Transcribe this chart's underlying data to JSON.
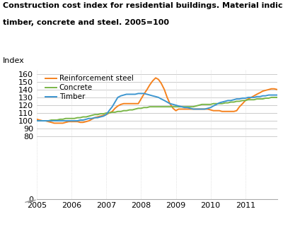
{
  "title_line1": "Construction cost index for residential buildings. Material indices for",
  "title_line2": "timber, concrete and steel. 2005=100",
  "ylabel": "Index",
  "background_color": "#ffffff",
  "grid_color": "#cccccc",
  "colors": {
    "steel": "#f5821e",
    "concrete": "#7ab648",
    "timber": "#3d96d0"
  },
  "legend": [
    "Reinforcement steel",
    "Concrete",
    "Timber"
  ],
  "ylim": [
    0,
    165
  ],
  "yticks": [
    0,
    80,
    90,
    100,
    110,
    120,
    130,
    140,
    150,
    160
  ],
  "xlim_start": 2005.0,
  "xlim_end": 2011.92,
  "steel": [
    [
      2005.0,
      102
    ],
    [
      2005.08,
      101
    ],
    [
      2005.17,
      100
    ],
    [
      2005.25,
      100
    ],
    [
      2005.33,
      99
    ],
    [
      2005.42,
      98
    ],
    [
      2005.5,
      97
    ],
    [
      2005.58,
      97
    ],
    [
      2005.67,
      97
    ],
    [
      2005.75,
      97
    ],
    [
      2005.83,
      98
    ],
    [
      2005.92,
      99
    ],
    [
      2006.0,
      99
    ],
    [
      2006.08,
      99
    ],
    [
      2006.17,
      99
    ],
    [
      2006.25,
      98
    ],
    [
      2006.33,
      98
    ],
    [
      2006.42,
      99
    ],
    [
      2006.5,
      100
    ],
    [
      2006.58,
      102
    ],
    [
      2006.67,
      104
    ],
    [
      2006.75,
      105
    ],
    [
      2006.83,
      106
    ],
    [
      2006.92,
      107
    ],
    [
      2007.0,
      108
    ],
    [
      2007.08,
      110
    ],
    [
      2007.17,
      112
    ],
    [
      2007.25,
      116
    ],
    [
      2007.33,
      119
    ],
    [
      2007.42,
      121
    ],
    [
      2007.5,
      122
    ],
    [
      2007.58,
      122
    ],
    [
      2007.67,
      122
    ],
    [
      2007.75,
      122
    ],
    [
      2007.83,
      122
    ],
    [
      2007.92,
      122
    ],
    [
      2008.0,
      128
    ],
    [
      2008.08,
      134
    ],
    [
      2008.17,
      140
    ],
    [
      2008.25,
      146
    ],
    [
      2008.33,
      151
    ],
    [
      2008.42,
      155
    ],
    [
      2008.5,
      153
    ],
    [
      2008.58,
      148
    ],
    [
      2008.67,
      140
    ],
    [
      2008.75,
      130
    ],
    [
      2008.83,
      122
    ],
    [
      2008.92,
      116
    ],
    [
      2009.0,
      113
    ],
    [
      2009.08,
      115
    ],
    [
      2009.17,
      115
    ],
    [
      2009.25,
      115
    ],
    [
      2009.33,
      115
    ],
    [
      2009.42,
      115
    ],
    [
      2009.5,
      115
    ],
    [
      2009.58,
      115
    ],
    [
      2009.67,
      115
    ],
    [
      2009.75,
      115
    ],
    [
      2009.83,
      115
    ],
    [
      2009.92,
      115
    ],
    [
      2010.0,
      114
    ],
    [
      2010.08,
      113
    ],
    [
      2010.17,
      113
    ],
    [
      2010.25,
      113
    ],
    [
      2010.33,
      112
    ],
    [
      2010.42,
      112
    ],
    [
      2010.5,
      112
    ],
    [
      2010.58,
      112
    ],
    [
      2010.67,
      112
    ],
    [
      2010.75,
      113
    ],
    [
      2010.83,
      118
    ],
    [
      2010.92,
      122
    ],
    [
      2011.0,
      126
    ],
    [
      2011.08,
      128
    ],
    [
      2011.17,
      130
    ],
    [
      2011.25,
      132
    ],
    [
      2011.33,
      134
    ],
    [
      2011.42,
      136
    ],
    [
      2011.5,
      138
    ],
    [
      2011.58,
      139
    ],
    [
      2011.67,
      140
    ],
    [
      2011.75,
      141
    ],
    [
      2011.83,
      141
    ],
    [
      2011.92,
      140
    ]
  ],
  "concrete": [
    [
      2005.0,
      100
    ],
    [
      2005.08,
      100
    ],
    [
      2005.17,
      100
    ],
    [
      2005.25,
      100
    ],
    [
      2005.33,
      100
    ],
    [
      2005.42,
      101
    ],
    [
      2005.5,
      101
    ],
    [
      2005.58,
      101
    ],
    [
      2005.67,
      102
    ],
    [
      2005.75,
      102
    ],
    [
      2005.83,
      103
    ],
    [
      2005.92,
      103
    ],
    [
      2006.0,
      103
    ],
    [
      2006.08,
      103
    ],
    [
      2006.17,
      104
    ],
    [
      2006.25,
      104
    ],
    [
      2006.33,
      105
    ],
    [
      2006.42,
      105
    ],
    [
      2006.5,
      106
    ],
    [
      2006.58,
      107
    ],
    [
      2006.67,
      108
    ],
    [
      2006.75,
      108
    ],
    [
      2006.83,
      109
    ],
    [
      2006.92,
      109
    ],
    [
      2007.0,
      110
    ],
    [
      2007.08,
      110
    ],
    [
      2007.17,
      111
    ],
    [
      2007.25,
      111
    ],
    [
      2007.33,
      112
    ],
    [
      2007.42,
      112
    ],
    [
      2007.5,
      113
    ],
    [
      2007.58,
      113
    ],
    [
      2007.67,
      114
    ],
    [
      2007.75,
      114
    ],
    [
      2007.83,
      115
    ],
    [
      2007.92,
      116
    ],
    [
      2008.0,
      116
    ],
    [
      2008.08,
      117
    ],
    [
      2008.17,
      117
    ],
    [
      2008.25,
      118
    ],
    [
      2008.33,
      118
    ],
    [
      2008.42,
      118
    ],
    [
      2008.5,
      118
    ],
    [
      2008.58,
      118
    ],
    [
      2008.67,
      118
    ],
    [
      2008.75,
      118
    ],
    [
      2008.83,
      118
    ],
    [
      2008.92,
      118
    ],
    [
      2009.0,
      118
    ],
    [
      2009.08,
      118
    ],
    [
      2009.17,
      118
    ],
    [
      2009.25,
      118
    ],
    [
      2009.33,
      118
    ],
    [
      2009.42,
      118
    ],
    [
      2009.5,
      118
    ],
    [
      2009.58,
      119
    ],
    [
      2009.67,
      120
    ],
    [
      2009.75,
      121
    ],
    [
      2009.83,
      121
    ],
    [
      2009.92,
      121
    ],
    [
      2010.0,
      121
    ],
    [
      2010.08,
      122
    ],
    [
      2010.17,
      122
    ],
    [
      2010.25,
      122
    ],
    [
      2010.33,
      122
    ],
    [
      2010.42,
      123
    ],
    [
      2010.5,
      123
    ],
    [
      2010.58,
      124
    ],
    [
      2010.67,
      124
    ],
    [
      2010.75,
      125
    ],
    [
      2010.83,
      125
    ],
    [
      2010.92,
      126
    ],
    [
      2011.0,
      126
    ],
    [
      2011.08,
      127
    ],
    [
      2011.17,
      127
    ],
    [
      2011.25,
      127
    ],
    [
      2011.33,
      128
    ],
    [
      2011.42,
      128
    ],
    [
      2011.5,
      128
    ],
    [
      2011.58,
      129
    ],
    [
      2011.67,
      129
    ],
    [
      2011.75,
      130
    ],
    [
      2011.83,
      130
    ],
    [
      2011.92,
      130
    ]
  ],
  "timber": [
    [
      2005.0,
      100
    ],
    [
      2005.08,
      100
    ],
    [
      2005.17,
      100
    ],
    [
      2005.25,
      100
    ],
    [
      2005.33,
      100
    ],
    [
      2005.42,
      100
    ],
    [
      2005.5,
      100
    ],
    [
      2005.58,
      100
    ],
    [
      2005.67,
      100
    ],
    [
      2005.75,
      100
    ],
    [
      2005.83,
      100
    ],
    [
      2005.92,
      100
    ],
    [
      2006.0,
      100
    ],
    [
      2006.08,
      100
    ],
    [
      2006.17,
      100
    ],
    [
      2006.25,
      101
    ],
    [
      2006.33,
      101
    ],
    [
      2006.42,
      102
    ],
    [
      2006.5,
      103
    ],
    [
      2006.58,
      103
    ],
    [
      2006.67,
      104
    ],
    [
      2006.75,
      104
    ],
    [
      2006.83,
      105
    ],
    [
      2006.92,
      106
    ],
    [
      2007.0,
      108
    ],
    [
      2007.08,
      113
    ],
    [
      2007.17,
      118
    ],
    [
      2007.25,
      124
    ],
    [
      2007.33,
      130
    ],
    [
      2007.42,
      132
    ],
    [
      2007.5,
      133
    ],
    [
      2007.58,
      134
    ],
    [
      2007.67,
      134
    ],
    [
      2007.75,
      134
    ],
    [
      2007.83,
      134
    ],
    [
      2007.92,
      135
    ],
    [
      2008.0,
      135
    ],
    [
      2008.08,
      135
    ],
    [
      2008.17,
      134
    ],
    [
      2008.25,
      133
    ],
    [
      2008.33,
      132
    ],
    [
      2008.42,
      131
    ],
    [
      2008.5,
      130
    ],
    [
      2008.58,
      128
    ],
    [
      2008.67,
      126
    ],
    [
      2008.75,
      124
    ],
    [
      2008.83,
      122
    ],
    [
      2008.92,
      121
    ],
    [
      2009.0,
      120
    ],
    [
      2009.08,
      119
    ],
    [
      2009.17,
      118
    ],
    [
      2009.25,
      117
    ],
    [
      2009.33,
      117
    ],
    [
      2009.42,
      116
    ],
    [
      2009.5,
      115
    ],
    [
      2009.58,
      115
    ],
    [
      2009.67,
      115
    ],
    [
      2009.75,
      115
    ],
    [
      2009.83,
      115
    ],
    [
      2009.92,
      116
    ],
    [
      2010.0,
      117
    ],
    [
      2010.08,
      119
    ],
    [
      2010.17,
      121
    ],
    [
      2010.25,
      123
    ],
    [
      2010.33,
      124
    ],
    [
      2010.42,
      125
    ],
    [
      2010.5,
      126
    ],
    [
      2010.58,
      126
    ],
    [
      2010.67,
      127
    ],
    [
      2010.75,
      128
    ],
    [
      2010.83,
      128
    ],
    [
      2010.92,
      129
    ],
    [
      2011.0,
      129
    ],
    [
      2011.08,
      130
    ],
    [
      2011.17,
      130
    ],
    [
      2011.25,
      130
    ],
    [
      2011.33,
      131
    ],
    [
      2011.42,
      131
    ],
    [
      2011.5,
      132
    ],
    [
      2011.58,
      132
    ],
    [
      2011.67,
      133
    ],
    [
      2011.75,
      133
    ],
    [
      2011.83,
      133
    ],
    [
      2011.92,
      133
    ]
  ]
}
